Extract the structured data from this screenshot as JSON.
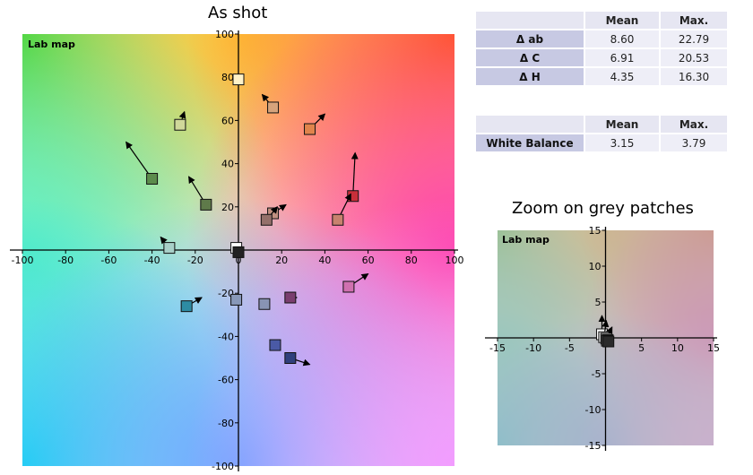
{
  "main_title": "As shot",
  "zoom_title": "Zoom on grey patches",
  "chart_data": [
    {
      "type": "scatter",
      "name": "main",
      "label": "Lab map",
      "xlim": [
        -100,
        100
      ],
      "ylim": [
        -100,
        100
      ],
      "xticks": [
        -100,
        -80,
        -60,
        -40,
        -20,
        0,
        20,
        40,
        60,
        80,
        100
      ],
      "yticks": [
        -100,
        -80,
        -60,
        -40,
        -20,
        20,
        40,
        60,
        80,
        100
      ],
      "grid": false,
      "patches": [
        {
          "x": 0,
          "y": 79,
          "dx": 0,
          "dy": 0,
          "color": "#fff2c8"
        },
        {
          "x": 16,
          "y": 66,
          "dx": -5,
          "dy": 6,
          "color": "#d6a47c"
        },
        {
          "x": 33,
          "y": 56,
          "dx": 7,
          "dy": 7,
          "color": "#e0844c"
        },
        {
          "x": -27,
          "y": 58,
          "dx": 2,
          "dy": 6,
          "color": "#d0d89a"
        },
        {
          "x": -40,
          "y": 33,
          "dx": -12,
          "dy": 17,
          "color": "#5c8c4c"
        },
        {
          "x": -15,
          "y": 21,
          "dx": -8,
          "dy": 13,
          "color": "#5f7a4a"
        },
        {
          "x": 53,
          "y": 25,
          "dx": 1,
          "dy": 20,
          "color": "#c82f3a"
        },
        {
          "x": 46,
          "y": 14,
          "dx": 6,
          "dy": 12,
          "color": "#c8826e"
        },
        {
          "x": 16,
          "y": 17,
          "dx": 6,
          "dy": 4,
          "color": "#c09080"
        },
        {
          "x": 13,
          "y": 14,
          "dx": 5,
          "dy": 6,
          "color": "#94706a"
        },
        {
          "x": -32,
          "y": 1,
          "dx": -4,
          "dy": 5,
          "color": "#a8d0c8"
        },
        {
          "x": -1,
          "y": 1,
          "dx": 0,
          "dy": 0,
          "color": "#ffffff"
        },
        {
          "x": 0,
          "y": -1,
          "dx": 0,
          "dy": 0,
          "color": "#222222"
        },
        {
          "x": 51,
          "y": -17,
          "dx": 9,
          "dy": 6,
          "color": "#d070b0"
        },
        {
          "x": 24,
          "y": -22,
          "dx": 3,
          "dy": 0,
          "color": "#7a3e6e"
        },
        {
          "x": -1,
          "y": -23,
          "dx": 0,
          "dy": 0,
          "color": "#8898b8"
        },
        {
          "x": 12,
          "y": -25,
          "dx": 0,
          "dy": 0,
          "color": "#8894b4"
        },
        {
          "x": -24,
          "y": -26,
          "dx": 7,
          "dy": 4,
          "color": "#2e8ca4"
        },
        {
          "x": 17,
          "y": -44,
          "dx": 0,
          "dy": 0,
          "color": "#4a5aa6"
        },
        {
          "x": 24,
          "y": -50,
          "dx": 9,
          "dy": -3,
          "color": "#30407c"
        }
      ]
    },
    {
      "type": "scatter",
      "name": "zoom",
      "label": "Lab map",
      "xlim": [
        -15,
        15
      ],
      "ylim": [
        -15,
        15
      ],
      "xticks": [
        -15,
        -10,
        -5,
        5,
        10,
        15
      ],
      "yticks": [
        -15,
        -10,
        -5,
        5,
        10,
        15
      ],
      "grid": false,
      "patches": [
        {
          "x": -0.5,
          "y": 0.5,
          "dx": 0,
          "dy": 2.6,
          "color": "#ffffff"
        },
        {
          "x": -0.2,
          "y": 0.1,
          "dx": 0.3,
          "dy": 2.3,
          "color": "#dcdcdc"
        },
        {
          "x": 0.1,
          "y": -0.1,
          "dx": 0.8,
          "dy": 1.6,
          "color": "#b4b4b4"
        },
        {
          "x": 0.3,
          "y": -0.3,
          "dx": 0.9,
          "dy": 0.3,
          "color": "#8a8a8a"
        },
        {
          "x": 0.2,
          "y": -0.4,
          "dx": 0.6,
          "dy": 0.2,
          "color": "#5a5a5a"
        },
        {
          "x": 0.4,
          "y": -0.5,
          "dx": 0.7,
          "dy": 0.1,
          "color": "#2a2a2a"
        }
      ]
    }
  ],
  "table1": {
    "headers": [
      "",
      "Mean",
      "Max."
    ],
    "rows": [
      {
        "label": "Δ ab",
        "mean": "8.60",
        "max": "22.79"
      },
      {
        "label": "Δ C",
        "mean": "6.91",
        "max": "20.53"
      },
      {
        "label": "Δ H",
        "mean": "4.35",
        "max": "16.30"
      }
    ]
  },
  "table2": {
    "headers": [
      "",
      "Mean",
      "Max."
    ],
    "rows": [
      {
        "label": "White Balance",
        "mean": "3.15",
        "max": "3.79"
      }
    ]
  }
}
